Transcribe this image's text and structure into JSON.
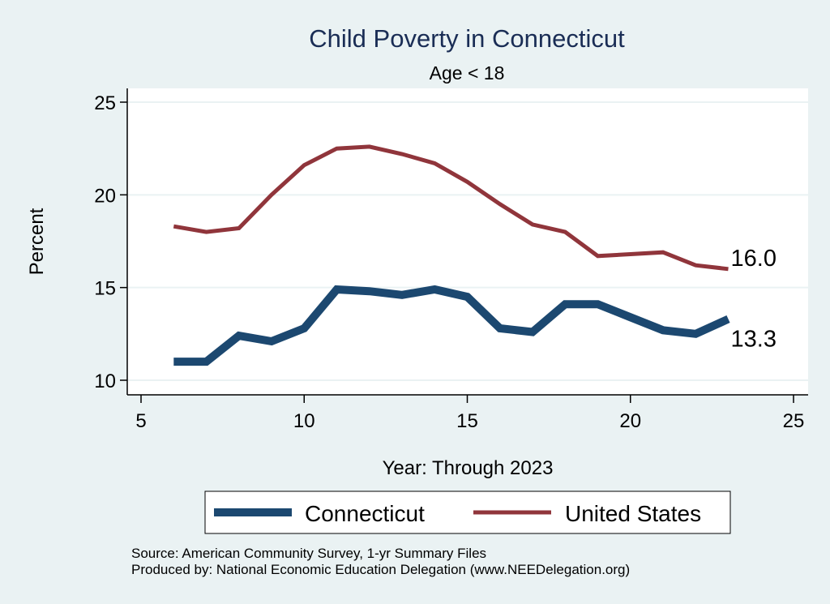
{
  "chart_data": {
    "type": "line",
    "title": "Child Poverty in Connecticut",
    "subtitle": "Age < 18",
    "xlabel": "Year: Through 2023",
    "ylabel": "Percent",
    "xlim": [
      5,
      25
    ],
    "ylim": [
      10,
      25
    ],
    "xticks": [
      5,
      10,
      15,
      20,
      25
    ],
    "yticks": [
      10,
      15,
      20,
      25
    ],
    "grid": "horizontal",
    "legend_position": "bottom",
    "x": [
      6,
      7,
      8,
      9,
      10,
      11,
      12,
      13,
      14,
      15,
      16,
      17,
      18,
      19,
      20,
      21,
      22,
      23
    ],
    "series": [
      {
        "name": "Connecticut",
        "color": "#1c4870",
        "style": "thick",
        "values": [
          11.0,
          11.0,
          12.4,
          12.1,
          12.8,
          14.9,
          14.8,
          14.6,
          14.9,
          14.5,
          12.8,
          12.6,
          14.1,
          14.1,
          13.4,
          12.7,
          12.5,
          13.3
        ],
        "end_label": "13.3"
      },
      {
        "name": "United States",
        "color": "#90353b",
        "style": "thin",
        "values": [
          18.3,
          18.0,
          18.2,
          20.0,
          21.6,
          22.5,
          22.6,
          22.2,
          21.7,
          20.7,
          19.5,
          18.4,
          18.0,
          16.7,
          16.8,
          16.9,
          16.2,
          16.0
        ],
        "end_label": "16.0"
      }
    ],
    "notes": [
      "Source: American Community Survey, 1-yr Summary Files",
      "Produced by: National Economic Education Delegation (www.NEEDelegation.org)"
    ]
  },
  "colors": {
    "background": "#eaf2f3",
    "plot_background": "#ffffff",
    "gridline": "#eaf2f3",
    "title": "#1a2d55"
  }
}
